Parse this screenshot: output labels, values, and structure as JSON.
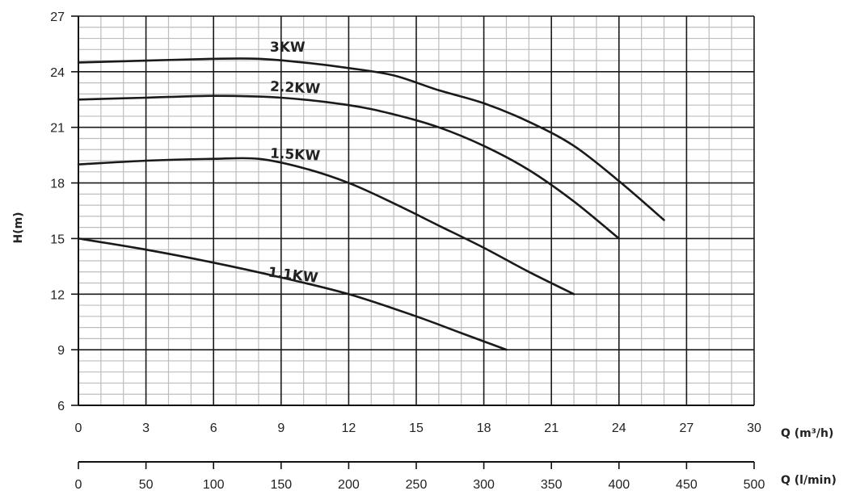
{
  "chart_data": {
    "type": "line",
    "ylabel": "H(m)",
    "xlabel": "Q (m³/h)",
    "x2label": "Q (l/min)",
    "xlim": [
      0,
      30
    ],
    "ylim": [
      6,
      27
    ],
    "x2lim": [
      0,
      500
    ],
    "x_ticks": [
      0,
      3,
      6,
      9,
      12,
      15,
      18,
      21,
      24,
      27,
      30
    ],
    "y_ticks": [
      6,
      9,
      12,
      15,
      18,
      21,
      24,
      27
    ],
    "x2_ticks": [
      0,
      50,
      100,
      150,
      200,
      250,
      300,
      350,
      400,
      450,
      500
    ],
    "x_tick_labels": [
      "0",
      "3",
      "6",
      "9",
      "12",
      "15",
      "18",
      "21",
      "24",
      "27",
      "30"
    ],
    "y_tick_labels": [
      "6",
      "9",
      "12",
      "15",
      "18",
      "21",
      "24",
      "27"
    ],
    "x2_tick_labels": [
      "0",
      "50",
      "100",
      "150",
      "200",
      "250",
      "300",
      "350",
      "400",
      "450",
      "500"
    ],
    "grid": true,
    "series": [
      {
        "name": "3KW",
        "x": [
          0,
          3,
          6,
          8,
          10,
          12,
          14,
          16,
          18,
          20,
          22,
          24,
          26
        ],
        "y": [
          24.5,
          24.6,
          24.7,
          24.7,
          24.5,
          24.2,
          23.8,
          23.0,
          22.3,
          21.3,
          20.0,
          18.1,
          16.0
        ]
      },
      {
        "name": "2.2KW",
        "x": [
          0,
          3,
          6,
          9,
          12,
          14,
          16,
          18,
          20,
          22,
          24
        ],
        "y": [
          22.5,
          22.6,
          22.7,
          22.6,
          22.2,
          21.7,
          21.0,
          20.0,
          18.7,
          17.0,
          15.0
        ]
      },
      {
        "name": "1.5KW",
        "x": [
          0,
          3,
          6,
          8,
          10,
          12,
          14,
          16,
          18,
          20,
          22
        ],
        "y": [
          19.0,
          19.2,
          19.3,
          19.3,
          18.8,
          18.0,
          16.9,
          15.7,
          14.5,
          13.2,
          12.0
        ]
      },
      {
        "name": "1.1KW",
        "x": [
          0,
          3,
          6,
          9,
          12,
          15,
          17,
          19
        ],
        "y": [
          15.0,
          14.4,
          13.7,
          12.9,
          12.0,
          10.8,
          9.9,
          9.0
        ]
      }
    ]
  }
}
